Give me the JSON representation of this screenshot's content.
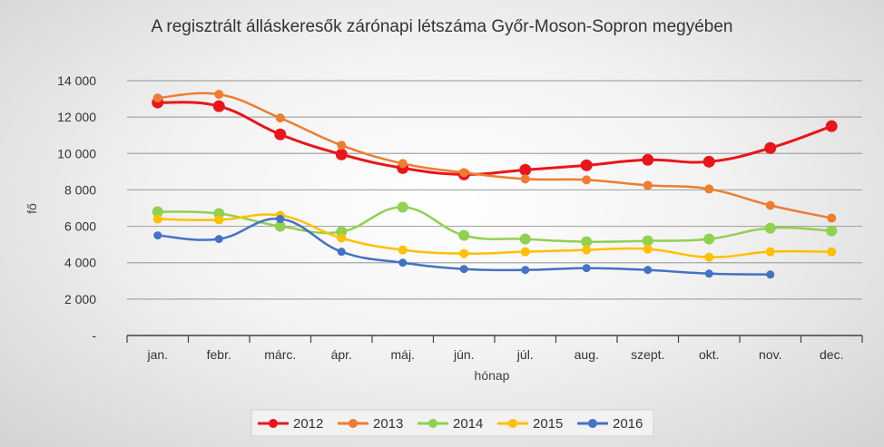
{
  "chart_data": {
    "type": "line",
    "title": "A regisztrált álláskeresők zárónapi létszáma Győr-Moson-Sopron megyében",
    "xlabel": "hónap",
    "ylabel": "fő",
    "categories": [
      "jan.",
      "febr.",
      "márc.",
      "ápr.",
      "máj.",
      "jún.",
      "júl.",
      "aug.",
      "szept.",
      "okt.",
      "nov.",
      "dec."
    ],
    "ylim": [
      0,
      14000
    ],
    "yticks": [
      {
        "value": 0,
        "label": "-"
      },
      {
        "value": 2000,
        "label": "2 000"
      },
      {
        "value": 4000,
        "label": "4 000"
      },
      {
        "value": 6000,
        "label": "6 000"
      },
      {
        "value": 8000,
        "label": "8 000"
      },
      {
        "value": 10000,
        "label": "10 000"
      },
      {
        "value": 12000,
        "label": "12 000"
      },
      {
        "value": 14000,
        "label": "14 000"
      }
    ],
    "grid": true,
    "legend_position": "bottom",
    "series": [
      {
        "name": "2012",
        "color": "#e8161b",
        "values": [
          12800,
          12600,
          11050,
          9950,
          9200,
          8850,
          9100,
          9350,
          9650,
          9550,
          10300,
          11500
        ]
      },
      {
        "name": "2013",
        "color": "#ed7d31",
        "values": [
          13050,
          13250,
          11950,
          10450,
          9450,
          8950,
          8600,
          8550,
          8250,
          8050,
          7150,
          6450
        ]
      },
      {
        "name": "2014",
        "color": "#92d050",
        "values": [
          6800,
          6700,
          6000,
          5700,
          7050,
          5500,
          5300,
          5150,
          5200,
          5300,
          5900,
          5750
        ]
      },
      {
        "name": "2015",
        "color": "#ffc000",
        "values": [
          6400,
          6350,
          6600,
          5350,
          4700,
          4500,
          4600,
          4700,
          4750,
          4300,
          4600,
          4600
        ]
      },
      {
        "name": "2016",
        "color": "#4472c4",
        "values": [
          5500,
          5300,
          6400,
          4600,
          4000,
          3650,
          3600,
          3700,
          3600,
          3400,
          3350,
          null
        ]
      }
    ]
  }
}
